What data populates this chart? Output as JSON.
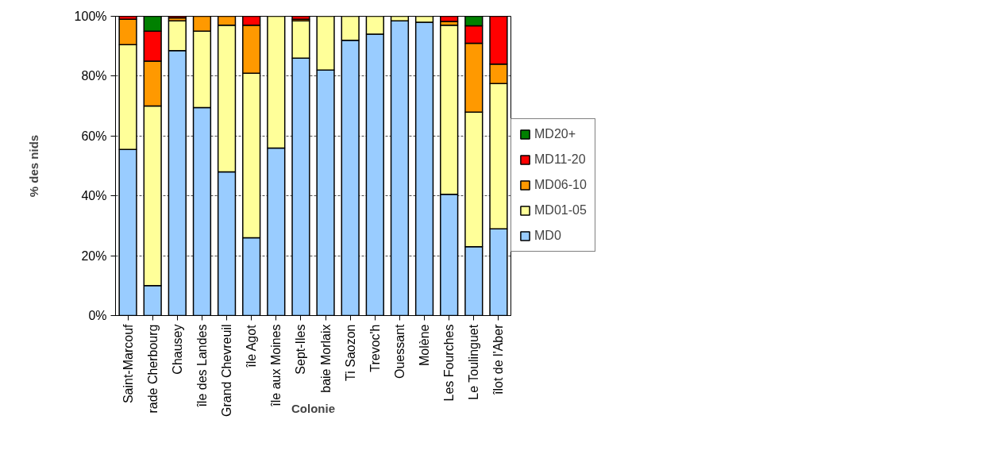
{
  "chart_data": {
    "type": "bar",
    "stacked": true,
    "xlabel": "Colonie",
    "ylabel": "% des nids",
    "categories": [
      "Saint-Marcouf",
      "rade Cherbourg",
      "Chausey",
      "île des Landes",
      "Grand Chevreuil",
      "île Agot",
      "île aux Moines",
      "Sept-Iles",
      "baie Morlaix",
      "Ti Saozon",
      "Trevoc'h",
      "Ouessant",
      "Molène",
      "Les Fourches",
      "Le Toulinguet",
      "îlot de l'Aber"
    ],
    "series": [
      {
        "name": "MD0",
        "color": "#99ccff",
        "values": [
          55.5,
          10,
          88.5,
          69.5,
          48,
          26,
          56,
          86,
          82,
          92,
          94,
          98.5,
          98,
          40.5,
          23,
          29
        ]
      },
      {
        "name": "MD01-05",
        "color": "#ffff99",
        "values": [
          35,
          60,
          10,
          25.5,
          49,
          55,
          44,
          12.5,
          18,
          8,
          6,
          1.5,
          2,
          56.5,
          45,
          48.5
        ]
      },
      {
        "name": "MD06-10",
        "color": "#ff9900",
        "values": [
          8.5,
          15,
          1,
          5,
          3,
          16,
          null,
          0.5,
          null,
          null,
          null,
          null,
          null,
          1.3,
          23,
          6.5
        ]
      },
      {
        "name": "MD11-20",
        "color": "#ff0000",
        "values": [
          1,
          10,
          0.5,
          null,
          null,
          3,
          null,
          1,
          null,
          null,
          null,
          null,
          null,
          1.7,
          5.8,
          16
        ]
      },
      {
        "name": "MD20+",
        "color": "#008000",
        "values": [
          null,
          5,
          null,
          null,
          null,
          null,
          null,
          null,
          null,
          null,
          null,
          null,
          null,
          null,
          3.2,
          null
        ]
      }
    ],
    "ylim": [
      0,
      100
    ],
    "yticks": [
      {
        "value": 0,
        "label": "0%"
      },
      {
        "value": 20,
        "label": "20%"
      },
      {
        "value": 40,
        "label": "40%"
      },
      {
        "value": 60,
        "label": "60%"
      },
      {
        "value": 80,
        "label": "80%"
      },
      {
        "value": 100,
        "label": "100%"
      }
    ],
    "grid": "y",
    "legend": "right"
  }
}
